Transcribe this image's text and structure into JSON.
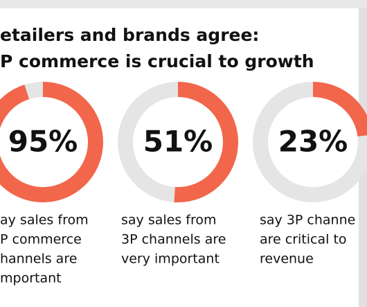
{
  "chart_data": {
    "type": "donut",
    "title_lines": [
      "etailers and brands agree:",
      "P commerce is crucial to growth"
    ],
    "values": [
      95,
      51,
      23
    ],
    "value_labels": [
      "95%",
      "51%",
      "23%"
    ],
    "color": "#f2664b",
    "track_color": "#e5e5e5",
    "captions": [
      [
        "ay sales from",
        "P commerce",
        "hannels are",
        "mportant"
      ],
      [
        "say sales from",
        "3P channels are",
        "very important"
      ],
      [
        "say 3P channe",
        "are critical to",
        "revenue"
      ]
    ]
  }
}
